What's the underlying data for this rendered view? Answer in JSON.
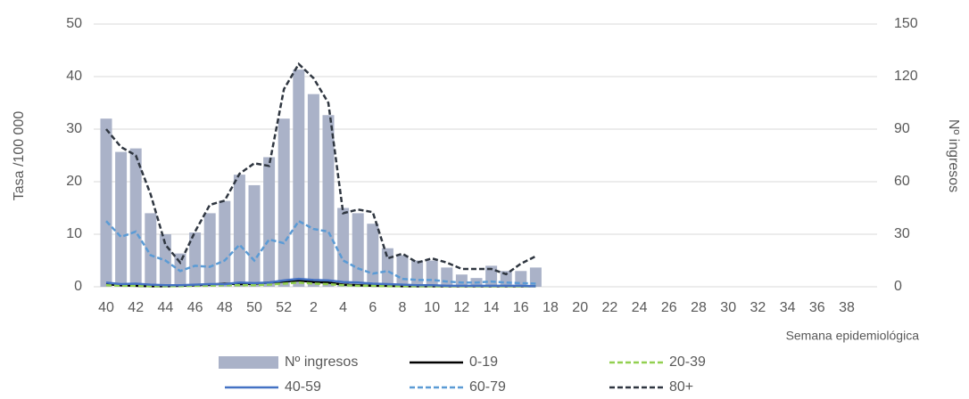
{
  "chart_data": {
    "type": "bar-line",
    "y_label": "Tasa /100 000",
    "y2_label": "Nº ingresos",
    "x_label": "Semana epidemiológica",
    "categories": [
      "40",
      null,
      "42",
      null,
      "44",
      null,
      "46",
      null,
      "48",
      null,
      "50",
      null,
      "52",
      null,
      "2",
      null,
      "4",
      null,
      "6",
      null,
      "8",
      null,
      "10",
      null,
      "12",
      null,
      "14",
      null,
      "16",
      null,
      "18",
      null,
      "20",
      null,
      "22",
      null,
      "24",
      null,
      "26",
      null,
      "28",
      null,
      "30",
      null,
      "32",
      null,
      "34",
      null,
      "36",
      null,
      "38",
      null
    ],
    "ylim": [
      0,
      50
    ],
    "yticks": [
      0,
      10,
      20,
      30,
      40,
      50
    ],
    "y2lim": [
      0,
      150
    ],
    "y2ticks": [
      0,
      30,
      60,
      90,
      120,
      150
    ],
    "grid": true,
    "legend": "bottom",
    "series": [
      {
        "name": "Nº ingresos",
        "kind": "bar",
        "axis": "y2",
        "color": "#aab2c8",
        "values": [
          96,
          77,
          79,
          42,
          30,
          19,
          31,
          42,
          49,
          64,
          58,
          74,
          96,
          124,
          110,
          98,
          45,
          42,
          36,
          22,
          18,
          15,
          15,
          11,
          7,
          5,
          12,
          9,
          9,
          11,
          null,
          null,
          null,
          null,
          null,
          null,
          null,
          null,
          null,
          null,
          null,
          null,
          null,
          null,
          null,
          null,
          null,
          null,
          null,
          null,
          null,
          null
        ]
      },
      {
        "name": "0-19",
        "kind": "line",
        "style": "solid",
        "color": "#000000",
        "values": [
          0.5,
          0.3,
          0.2,
          0.1,
          0.1,
          0.2,
          0.3,
          0.4,
          0.6,
          0.5,
          0.6,
          0.8,
          1,
          1.2,
          0.9,
          0.8,
          0.4,
          0.3,
          0.2,
          0.2,
          0.1,
          0.1,
          0.1,
          0.1,
          0.1,
          0.1,
          0.1,
          0.1,
          0.1,
          0.1,
          null,
          null,
          null,
          null,
          null,
          null,
          null,
          null,
          null,
          null,
          null,
          null,
          null,
          null,
          null,
          null,
          null,
          null,
          null,
          null,
          null,
          null
        ]
      },
      {
        "name": "20-39",
        "kind": "line",
        "style": "dashed",
        "color": "#92d050",
        "values": [
          0.3,
          0.2,
          0.2,
          0.1,
          0.1,
          0.1,
          0.2,
          0.2,
          0.3,
          0.3,
          0.3,
          0.4,
          0.6,
          0.8,
          0.6,
          0.5,
          0.3,
          0.2,
          0.2,
          0.1,
          0.1,
          0.1,
          0.1,
          0.1,
          0.1,
          0.1,
          0.1,
          0.1,
          0.1,
          0.1,
          null,
          null,
          null,
          null,
          null,
          null,
          null,
          null,
          null,
          null,
          null,
          null,
          null,
          null,
          null,
          null,
          null,
          null,
          null,
          null,
          null,
          null
        ]
      },
      {
        "name": "40-59",
        "kind": "line",
        "style": "solid",
        "color": "#4472c4",
        "values": [
          0.8,
          0.5,
          0.6,
          0.4,
          0.3,
          0.3,
          0.4,
          0.5,
          0.5,
          0.8,
          0.7,
          0.8,
          1.2,
          1.5,
          1.3,
          1.2,
          0.9,
          0.8,
          0.6,
          0.5,
          0.4,
          0.3,
          0.3,
          0.2,
          0.2,
          0.2,
          0.2,
          0.2,
          0.2,
          0.1,
          null,
          null,
          null,
          null,
          null,
          null,
          null,
          null,
          null,
          null,
          null,
          null,
          null,
          null,
          null,
          null,
          null,
          null,
          null,
          null,
          null,
          null
        ]
      },
      {
        "name": "60-79",
        "kind": "line",
        "style": "dashed",
        "color": "#5b9bd5",
        "values": [
          12.5,
          9.5,
          10.5,
          6,
          5,
          3,
          4,
          3.8,
          5,
          8,
          5,
          9,
          8.3,
          12.5,
          11,
          10.5,
          5,
          3.5,
          2.5,
          3,
          1.5,
          1.3,
          1.3,
          1,
          0.8,
          0.8,
          1,
          0.8,
          0.7,
          0.6,
          null,
          null,
          null,
          null,
          null,
          null,
          null,
          null,
          null,
          null,
          null,
          null,
          null,
          null,
          null,
          null,
          null,
          null,
          null,
          null,
          null,
          null
        ]
      },
      {
        "name": "80+",
        "kind": "line",
        "style": "dashed",
        "color": "#2f3640",
        "values": [
          30,
          26.6,
          25,
          17.6,
          8,
          4.6,
          10.5,
          15.6,
          16.4,
          21.5,
          23.5,
          23,
          37.6,
          42.4,
          39.7,
          35,
          14,
          14.7,
          14.2,
          5.4,
          6.3,
          4.6,
          5.4,
          4.6,
          3.4,
          3.4,
          3.4,
          2.4,
          4.4,
          5.8,
          null,
          null,
          null,
          null,
          null,
          null,
          null,
          null,
          null,
          null,
          null,
          null,
          null,
          null,
          null,
          null,
          null,
          null,
          null,
          null,
          null,
          null
        ]
      }
    ]
  }
}
